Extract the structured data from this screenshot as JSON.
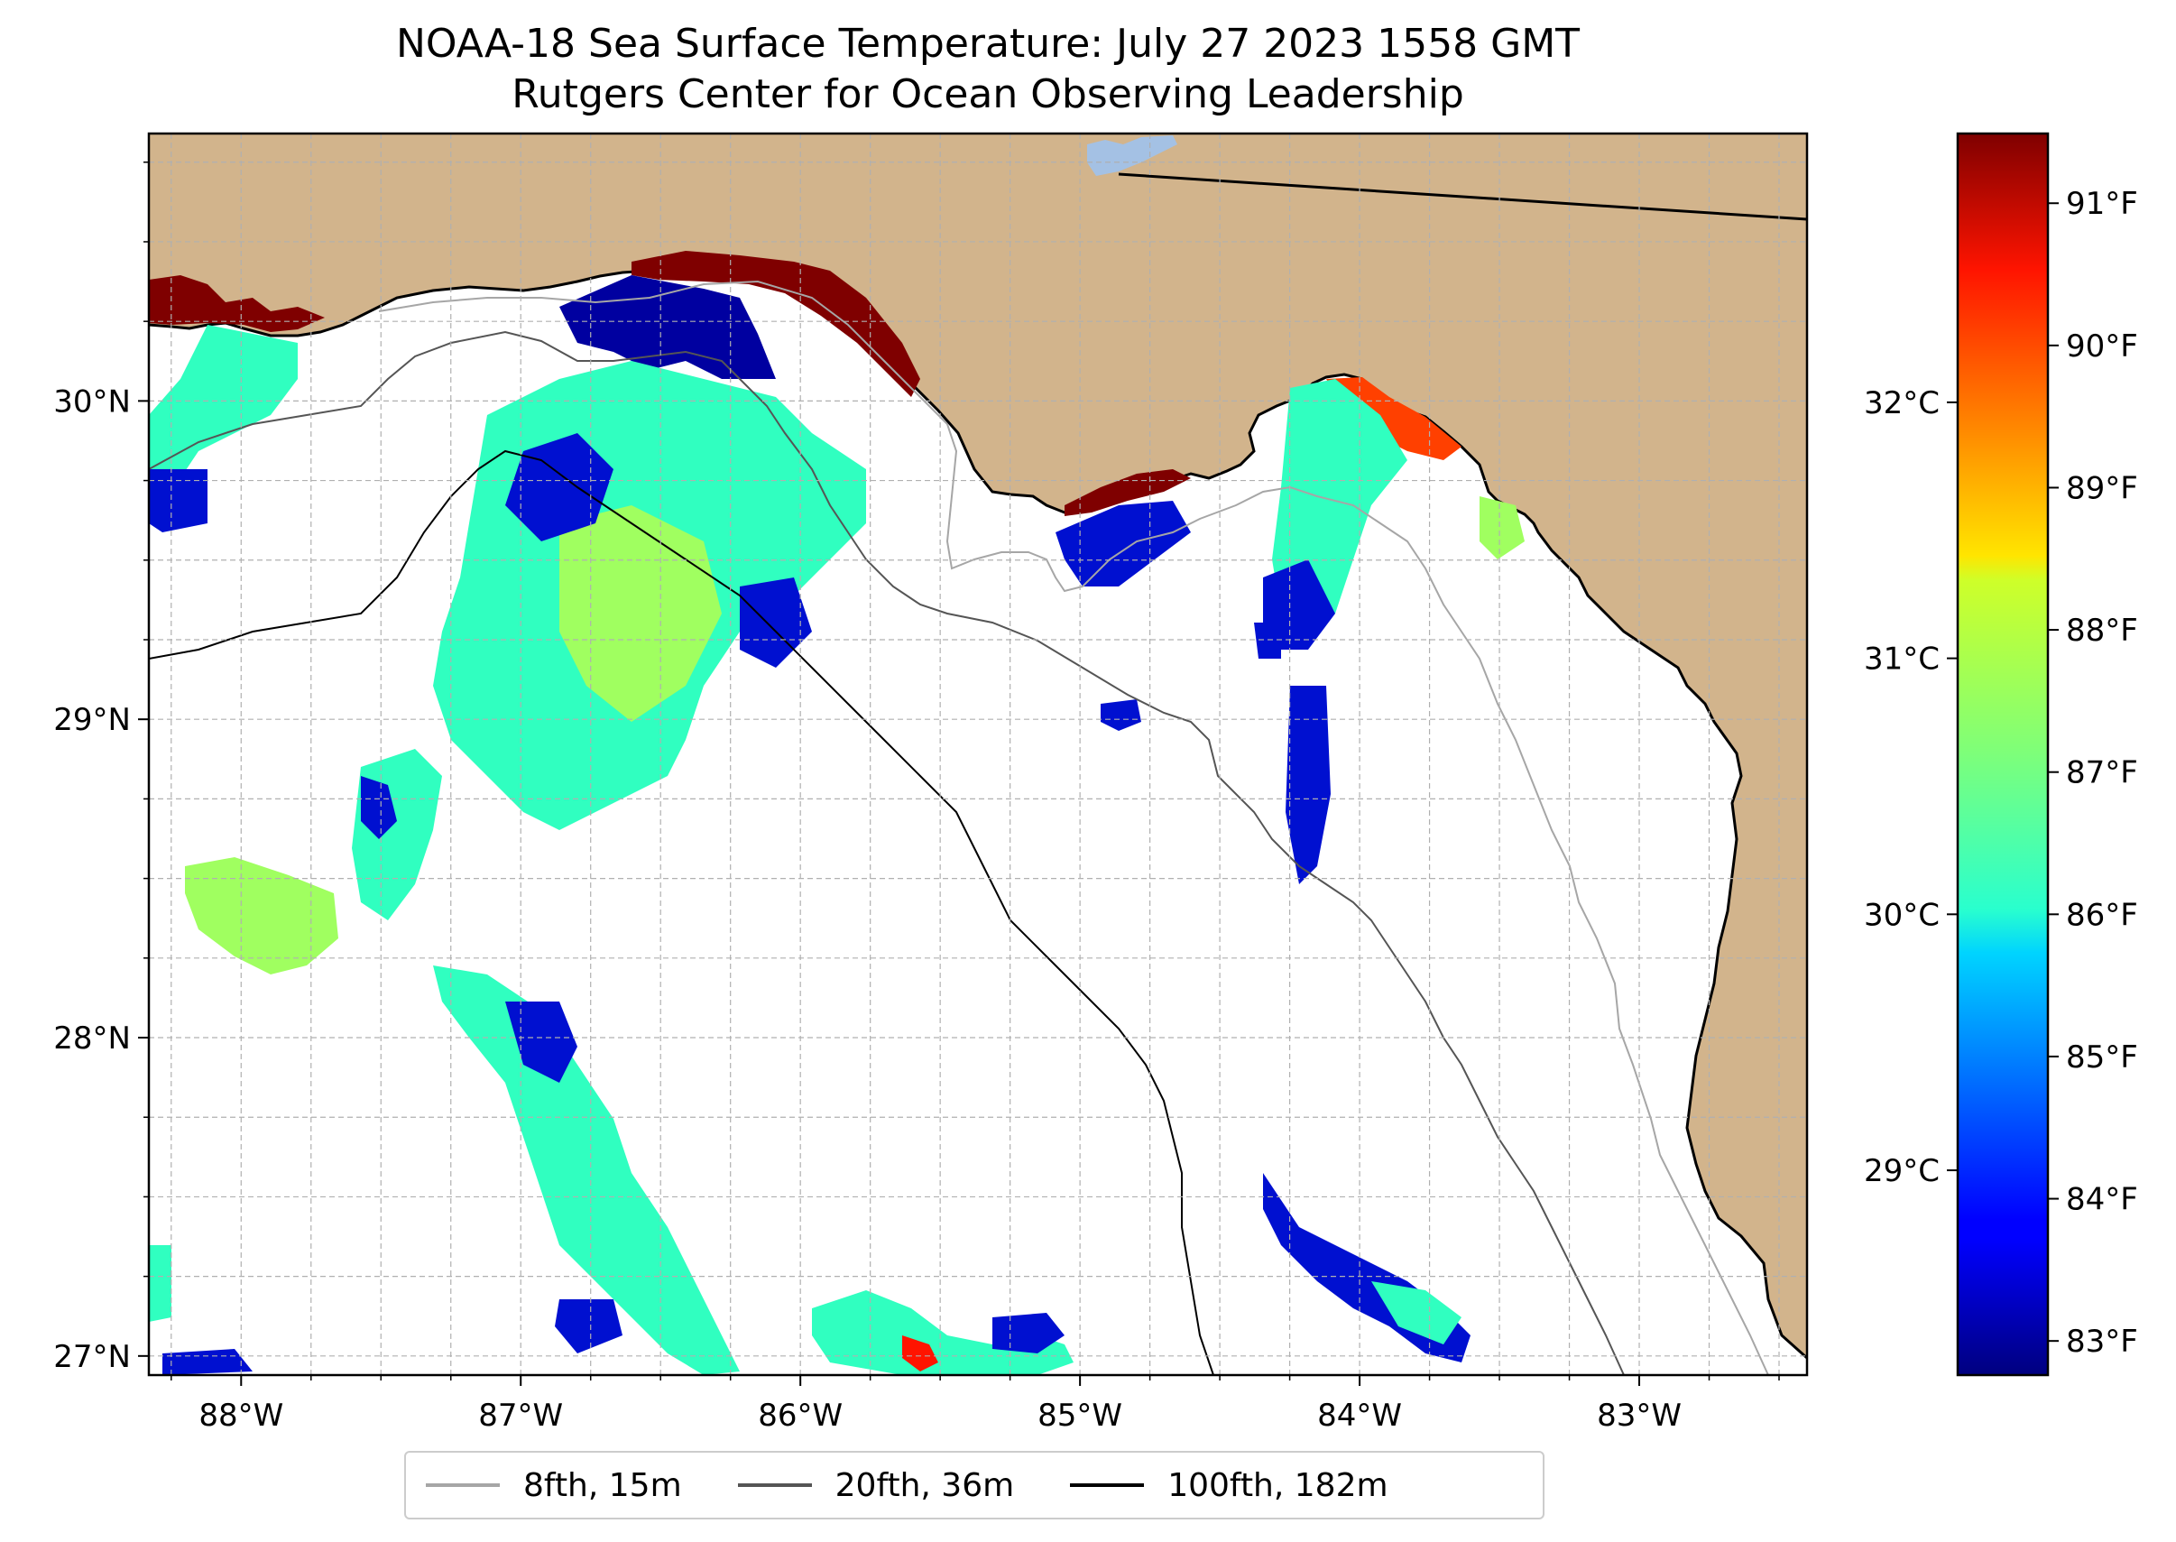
{
  "title": {
    "line1": "NOAA-18 Sea Surface Temperature: July 27 2023 1558 GMT",
    "line2": "Rutgers Center for Ocean Observing Leadership"
  },
  "colors": {
    "land": "#d2b48c",
    "ocean": "#ffffff",
    "lake": "#a4c1e4",
    "coast": "#000000",
    "iso_8fth": "#a6a6a6",
    "iso_20fth": "#555555",
    "iso_100fth": "#000000",
    "gridline": "#b0b0b0"
  },
  "map": {
    "lon_range": [
      -88.33,
      -82.4
    ],
    "lat_range": [
      26.94,
      30.84
    ],
    "lon_ticks": [
      {
        "lon": -88,
        "label": "88°W"
      },
      {
        "lon": -87,
        "label": "87°W"
      },
      {
        "lon": -86,
        "label": "86°W"
      },
      {
        "lon": -85,
        "label": "85°W"
      },
      {
        "lon": -84,
        "label": "84°W"
      },
      {
        "lon": -83,
        "label": "83°W"
      }
    ],
    "lat_ticks": [
      {
        "lat": 27,
        "label": "27°N"
      },
      {
        "lat": 28,
        "label": "28°N"
      },
      {
        "lat": 29,
        "label": "29°N"
      },
      {
        "lat": 30,
        "label": "30°N"
      }
    ]
  },
  "colorbar": {
    "colormap": "jet",
    "celsius_range": [
      28.2,
      33.05
    ],
    "fahrenheit_ticks": [
      {
        "value": 83,
        "label": "83°F"
      },
      {
        "value": 84,
        "label": "84°F"
      },
      {
        "value": 85,
        "label": "85°F"
      },
      {
        "value": 86,
        "label": "86°F"
      },
      {
        "value": 87,
        "label": "87°F"
      },
      {
        "value": 88,
        "label": "88°F"
      },
      {
        "value": 89,
        "label": "89°F"
      },
      {
        "value": 90,
        "label": "90°F"
      },
      {
        "value": 91,
        "label": "91°F"
      }
    ],
    "celsius_ticks": [
      {
        "value": 29,
        "label": "29°C"
      },
      {
        "value": 30,
        "label": "30°C"
      },
      {
        "value": 31,
        "label": "31°C"
      },
      {
        "value": 32,
        "label": "32°C"
      }
    ]
  },
  "legend": {
    "items": [
      {
        "label": "8fth, 15m",
        "color": "#a6a6a6"
      },
      {
        "label": "20fth, 36m",
        "color": "#555555"
      },
      {
        "label": "100fth, 182m",
        "color": "#000000"
      }
    ]
  }
}
